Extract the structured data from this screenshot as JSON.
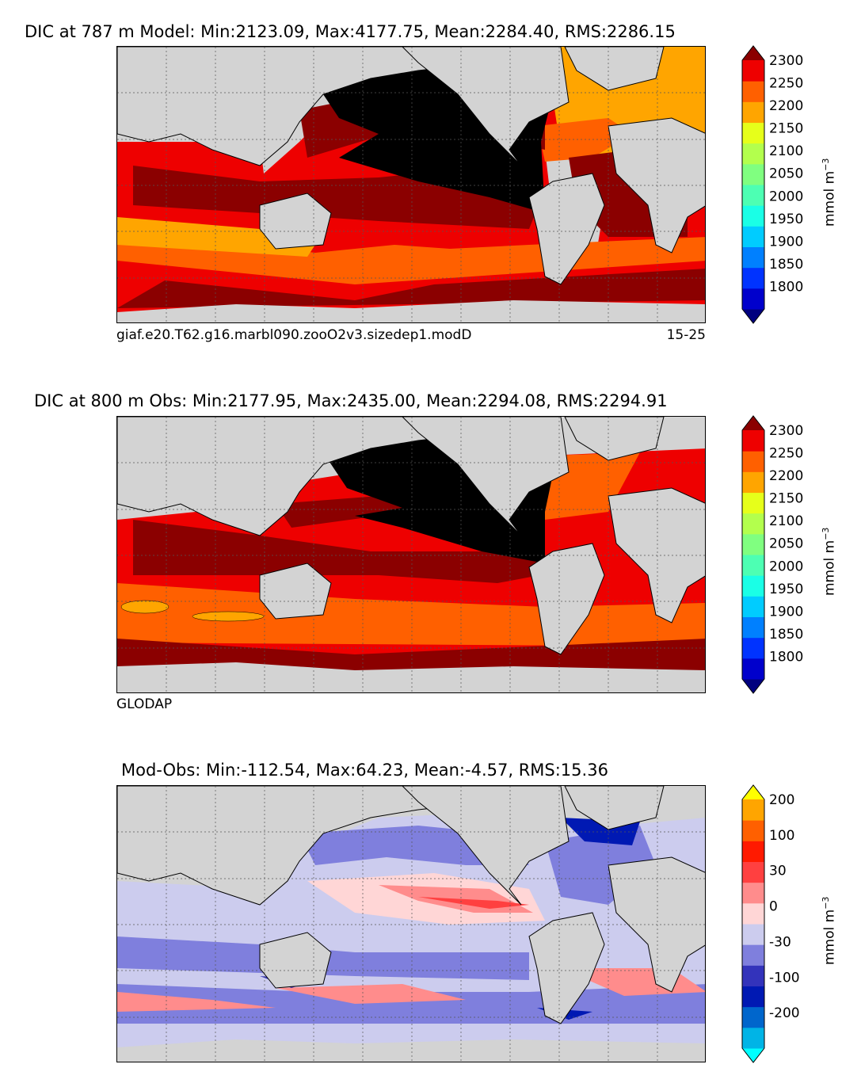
{
  "panels": [
    {
      "id": "model",
      "title": "DIC at 787 m Model: Min:2123.09, Max:4177.75, Mean:2284.40, RMS:2286.15",
      "caption_left": "giaf.e20.T62.g16.marbl090.zooO2v3.sizedep1.modD",
      "caption_right": "15-25",
      "unit": "mmol m",
      "unit_sup": "−3",
      "colorbar": {
        "colors": [
          "#00007f",
          "#0000cc",
          "#0033ff",
          "#0080ff",
          "#00ccff",
          "#1affe6",
          "#4dffb3",
          "#80ff80",
          "#b3ff4d",
          "#e6ff1a",
          "#ffa500",
          "#ff6000",
          "#ee0000",
          "#8b0000"
        ],
        "labels": [
          "1800",
          "1850",
          "1900",
          "1950",
          "2000",
          "2050",
          "2100",
          "2150",
          "2200",
          "2250",
          "2300"
        ]
      }
    },
    {
      "id": "obs",
      "title": "DIC at 800 m Obs: Min:2177.95, Max:2435.00, Mean:2294.08, RMS:2294.91",
      "caption_left": "GLODAP",
      "caption_right": "",
      "unit": "mmol m",
      "unit_sup": "−3",
      "colorbar": {
        "colors": [
          "#00007f",
          "#0000cc",
          "#0033ff",
          "#0080ff",
          "#00ccff",
          "#1affe6",
          "#4dffb3",
          "#80ff80",
          "#b3ff4d",
          "#e6ff1a",
          "#ffa500",
          "#ff6000",
          "#ee0000",
          "#8b0000"
        ],
        "labels": [
          "1800",
          "1850",
          "1900",
          "1950",
          "2000",
          "2050",
          "2100",
          "2150",
          "2200",
          "2250",
          "2300"
        ]
      }
    },
    {
      "id": "diff",
      "title": "Mod-Obs: Min:-112.54, Max:64.23, Mean:-4.57, RMS:15.36",
      "caption_left": "",
      "caption_right": "",
      "unit": "mmol m",
      "unit_sup": "−3",
      "colorbar": {
        "colors": [
          "#00ffff",
          "#00b4e6",
          "#0066cc",
          "#0019b3",
          "#3333bb",
          "#7f7fdd",
          "#ccccee",
          "#ffd6d6",
          "#ff8c8c",
          "#ff4040",
          "#ff1a00",
          "#ff6000",
          "#ffa500",
          "#ffff00"
        ],
        "labels": [
          "-200",
          "-100",
          "-30",
          "0",
          "30",
          "100",
          "200"
        ]
      }
    }
  ],
  "chart_data": [
    {
      "type": "heatmap",
      "title": "DIC at 787 m Model: Min:2123.09, Max:4177.75, Mean:2284.40, RMS:2286.15",
      "variable": "DIC",
      "depth_m": 787,
      "source": "Model",
      "stats": {
        "min": 2123.09,
        "max": 4177.75,
        "mean": 2284.4,
        "rms": 2286.15
      },
      "colorbar_label": "mmol m^-3",
      "levels": [
        1800,
        1850,
        1900,
        1950,
        2000,
        2050,
        2100,
        2150,
        2200,
        2250,
        2300
      ],
      "extend": "both",
      "projection": "cylindrical",
      "grid": true
    },
    {
      "type": "heatmap",
      "title": "DIC at 800 m Obs: Min:2177.95, Max:2435.00, Mean:2294.08, RMS:2294.91",
      "variable": "DIC",
      "depth_m": 800,
      "source": "GLODAP",
      "stats": {
        "min": 2177.95,
        "max": 2435.0,
        "mean": 2294.08,
        "rms": 2294.91
      },
      "colorbar_label": "mmol m^-3",
      "levels": [
        1800,
        1850,
        1900,
        1950,
        2000,
        2050,
        2100,
        2150,
        2200,
        2250,
        2300
      ],
      "extend": "both",
      "projection": "cylindrical",
      "grid": true
    },
    {
      "type": "heatmap",
      "title": "Mod-Obs: Min:-112.54, Max:64.23, Mean:-4.57, RMS:15.36",
      "variable": "DIC difference",
      "stats": {
        "min": -112.54,
        "max": 64.23,
        "mean": -4.57,
        "rms": 15.36
      },
      "colorbar_label": "mmol m^-3",
      "colorbar_ticks": [
        -200,
        -100,
        -30,
        0,
        30,
        100,
        200
      ],
      "extend": "both",
      "projection": "cylindrical",
      "grid": true
    }
  ]
}
